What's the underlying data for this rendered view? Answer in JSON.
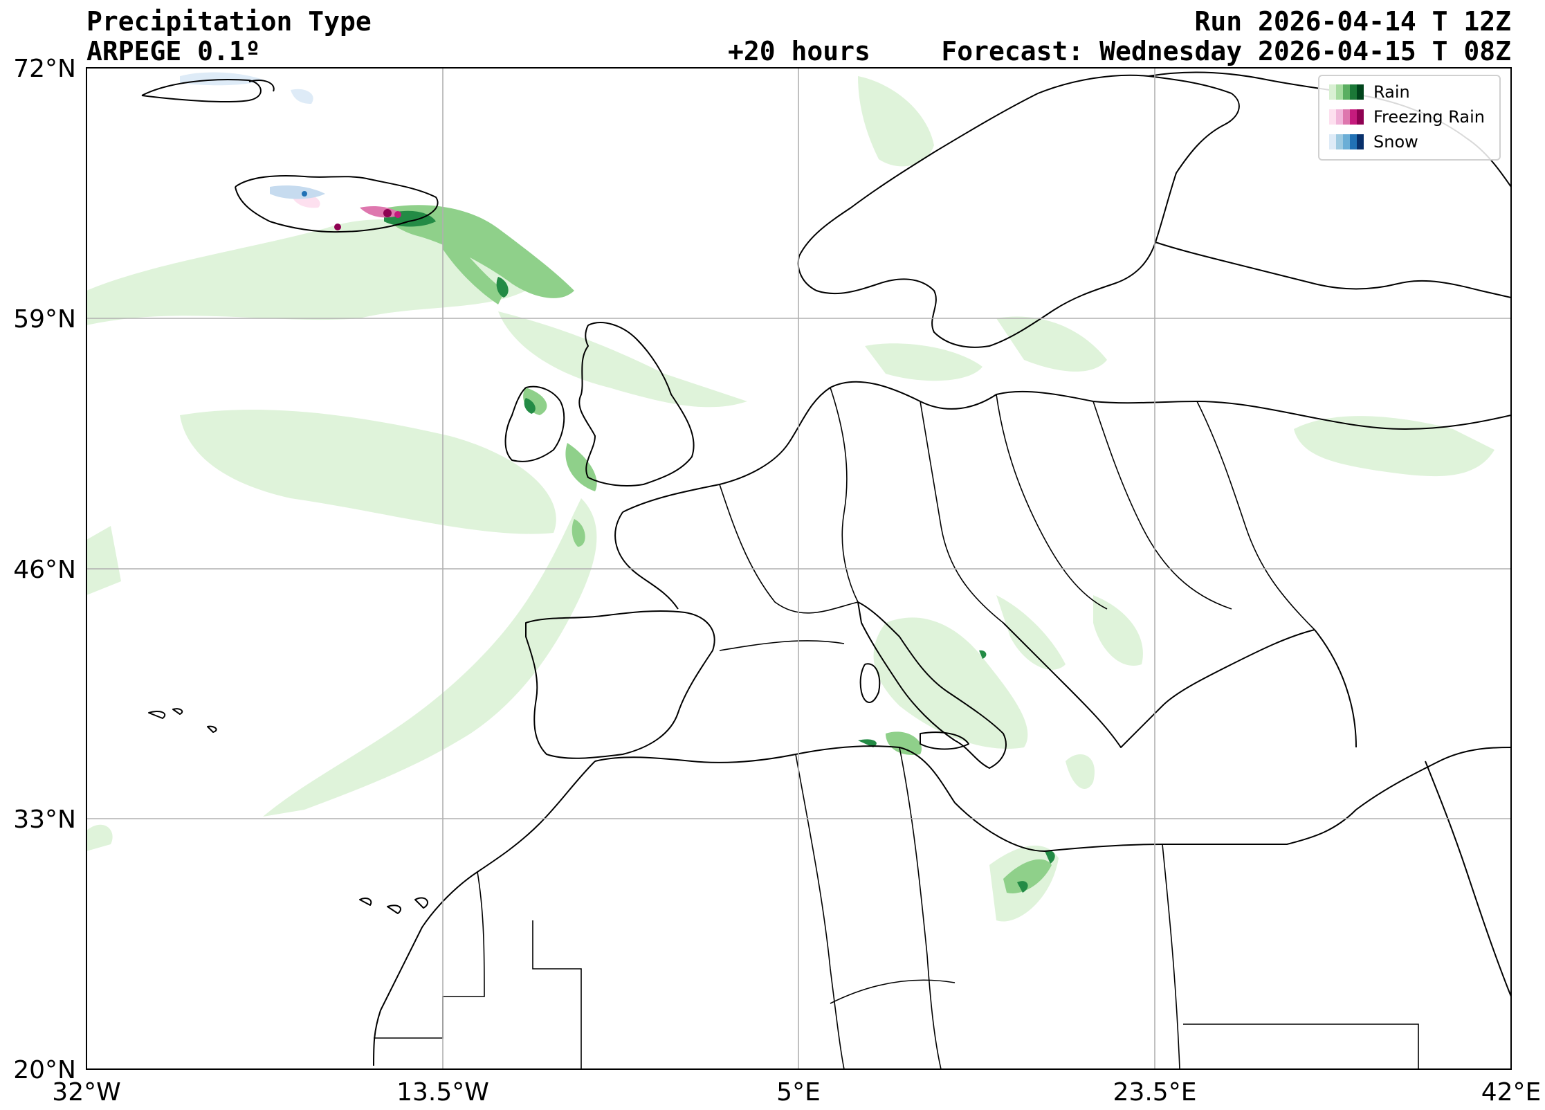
{
  "header": {
    "title": "Precipitation Type",
    "model": "ARPEGE 0.1º",
    "run": "Run 2026-04-14 T 12Z",
    "lead": "+20 hours",
    "forecast": "Forecast: Wednesday 2026-04-15 T 08Z"
  },
  "axes": {
    "lat_labels": [
      "72°N",
      "59°N",
      "46°N",
      "33°N",
      "20°N"
    ],
    "lon_labels": [
      "32°W",
      "13.5°W",
      "5°E",
      "23.5°E",
      "42°E"
    ],
    "lat_range": [
      20,
      72
    ],
    "lon_range": [
      -32,
      42
    ]
  },
  "legend": {
    "placement": "top-right",
    "items": [
      {
        "label": "Rain",
        "colors": [
          "#d9f0d3",
          "#a6dba0",
          "#5aae61",
          "#1b7837",
          "#00441b"
        ]
      },
      {
        "label": "Freezing Rain",
        "colors": [
          "#fde0ef",
          "#f1b6da",
          "#de77ae",
          "#c51b7d",
          "#8e0152"
        ]
      },
      {
        "label": "Snow",
        "colors": [
          "#deebf7",
          "#9ecae1",
          "#6baed6",
          "#2171b5",
          "#08306b"
        ]
      }
    ]
  },
  "colors": {
    "rain_light": "#dff3da",
    "rain_mid": "#8fd08a",
    "rain_dark": "#238b45",
    "freezing": "#e7298a",
    "snow": "#c6dbef",
    "grid": "#b0b0b0",
    "coast": "#000000"
  }
}
